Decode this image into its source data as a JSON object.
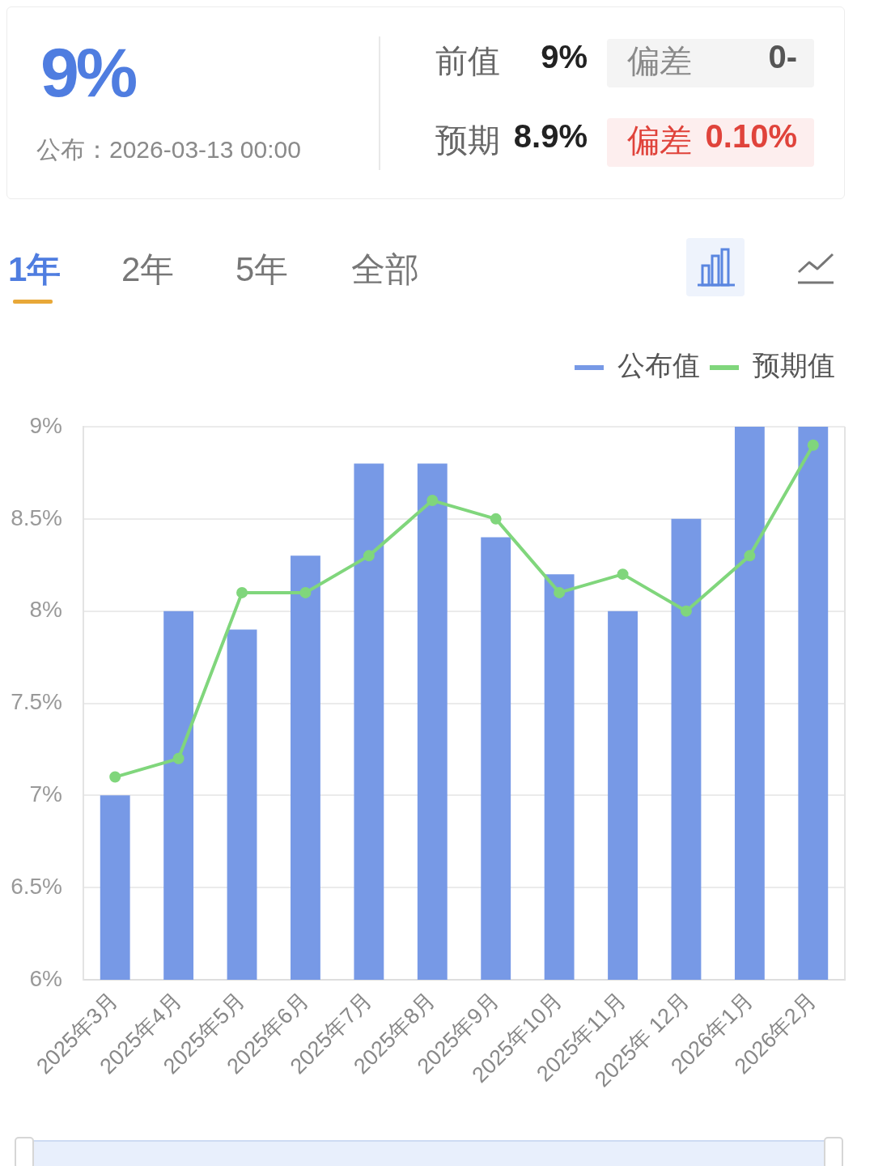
{
  "chart_data": [
    {
      "type": "other",
      "title": "9%",
      "subtitle": "公布：2026-03-13 00:00",
      "annotations": [
        "前值",
        "9%",
        "偏差",
        "0-",
        "预期",
        "8.9%",
        "偏差",
        "0.10%",
        "1年",
        "2年",
        "5年",
        "全部"
      ]
    },
    {
      "type": "bar",
      "categories": [
        "2025年3月",
        "2025年4月",
        "2025年5月",
        "2025年6月",
        "2025年7月",
        "2025年8月",
        "2025年9月",
        "2025年10月",
        "2025年11月",
        "2025年 12月",
        "2026年1月",
        "2026年2月"
      ],
      "series": [
        {
          "name": "公布值",
          "color": "#7799e6",
          "values": [
            7,
            8,
            7.9,
            8.3,
            8.8,
            8.8,
            8.4,
            8.2,
            8.0,
            8.5,
            9,
            9
          ]
        },
        {
          "name": "预期值",
          "type": "line",
          "color": "#80d67c",
          "values": [
            7.1,
            7.2,
            8.1,
            8.1,
            8.3,
            8.6,
            8.5,
            8.1,
            8.2,
            8.0,
            8.3,
            8.9
          ]
        }
      ],
      "ylim": [
        6,
        9
      ],
      "yticks": [
        {
          "value": 6,
          "label": "6%"
        },
        {
          "value": 6.5,
          "label": "6.5%"
        },
        {
          "value": 7,
          "label": "7%"
        },
        {
          "value": 7.5,
          "label": "7.5%"
        },
        {
          "value": 8,
          "label": "8%"
        },
        {
          "value": 8.5,
          "label": "8.5%"
        },
        {
          "value": 9,
          "label": "9%"
        }
      ],
      "grid": "y",
      "legend": "top right",
      "marker": "circle"
    }
  ]
}
